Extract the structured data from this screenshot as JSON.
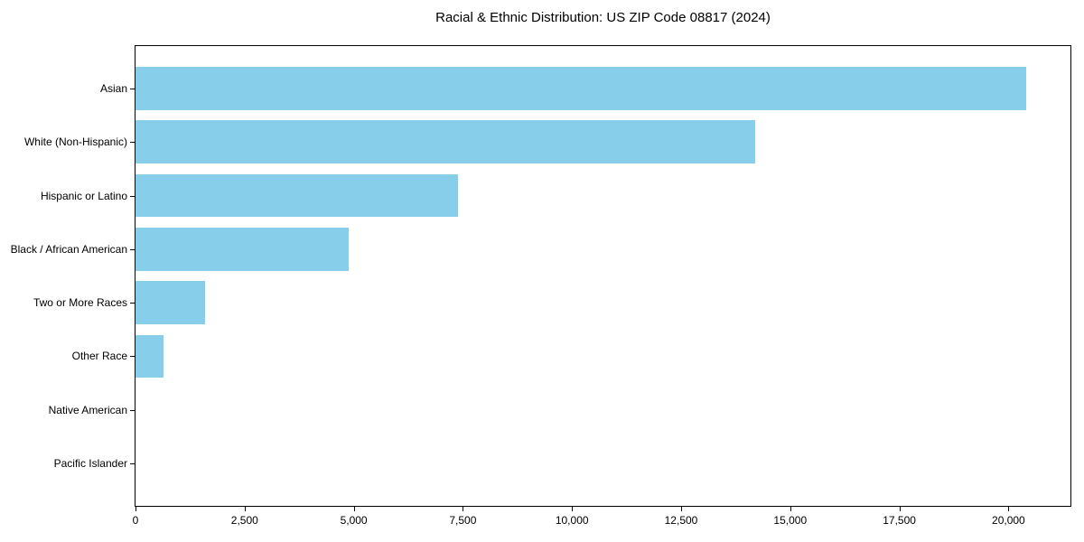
{
  "chart_data": {
    "type": "bar",
    "orientation": "horizontal",
    "title": "Racial & Ethnic Distribution: US ZIP Code 08817 (2024)",
    "categories": [
      "Asian",
      "White (Non-Hispanic)",
      "Hispanic or Latino",
      "Black / African American",
      "Two or More Races",
      "Other Race",
      "Native American",
      "Pacific Islander"
    ],
    "values": [
      20400,
      14200,
      7380,
      4880,
      1590,
      640,
      0,
      0
    ],
    "xlabel": "",
    "ylabel": "",
    "xlim": [
      0,
      21420
    ],
    "xticks": {
      "values": [
        0,
        2500,
        5000,
        7500,
        10000,
        12500,
        15000,
        17500,
        20000
      ],
      "labels": [
        "0",
        "2,500",
        "5,000",
        "7,500",
        "10,000",
        "12,500",
        "15,000",
        "17,500",
        "20,000"
      ]
    },
    "grid": false,
    "legend": null,
    "bar_color": "#87ceeb",
    "background_color": "#ffffff",
    "bar_height_fraction": 0.8
  }
}
